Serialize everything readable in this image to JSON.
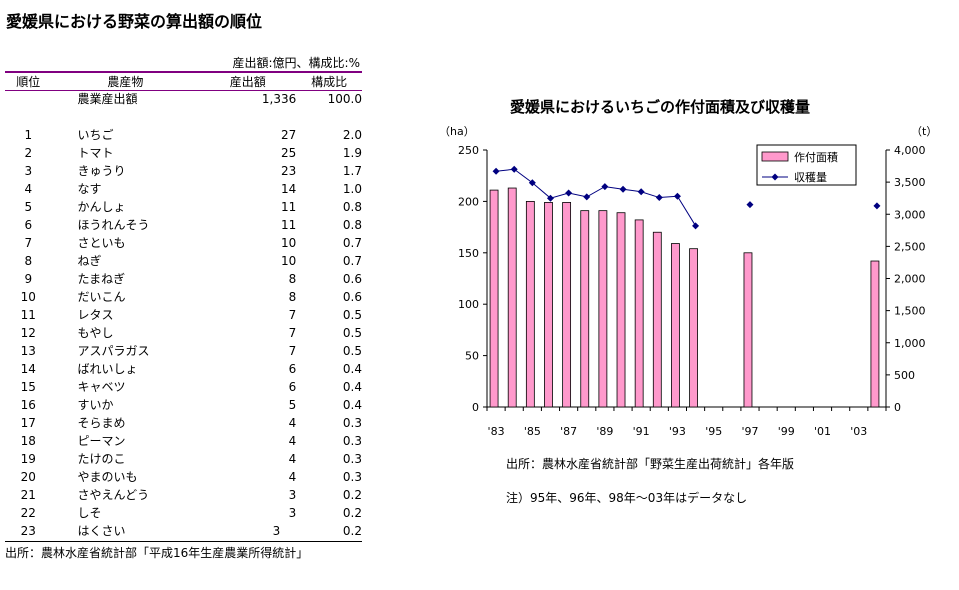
{
  "page_title": "愛媛県における野菜の算出額の順位",
  "table": {
    "unit": "産出額:億円、構成比:%",
    "headers": [
      "順位",
      "農産物",
      "産出額",
      "構成比"
    ],
    "total": {
      "label": "農業産出額",
      "value": "1,336",
      "share": "100.0"
    },
    "rows": [
      [
        "1",
        "いちご",
        "27",
        "2.0"
      ],
      [
        "2",
        "トマト",
        "25",
        "1.9"
      ],
      [
        "3",
        "きゅうり",
        "23",
        "1.7"
      ],
      [
        "4",
        "なす",
        "14",
        "1.0"
      ],
      [
        "5",
        "かんしょ",
        "11",
        "0.8"
      ],
      [
        "6",
        "ほうれんそう",
        "11",
        "0.8"
      ],
      [
        "7",
        "さといも",
        "10",
        "0.7"
      ],
      [
        "8",
        "ねぎ",
        "10",
        "0.7"
      ],
      [
        "9",
        "たまねぎ",
        "8",
        "0.6"
      ],
      [
        "10",
        "だいこん",
        "8",
        "0.6"
      ],
      [
        "11",
        "レタス",
        "7",
        "0.5"
      ],
      [
        "12",
        "もやし",
        "7",
        "0.5"
      ],
      [
        "13",
        "アスパラガス",
        "7",
        "0.5"
      ],
      [
        "14",
        "ばれいしょ",
        "6",
        "0.4"
      ],
      [
        "15",
        "キャベツ",
        "6",
        "0.4"
      ],
      [
        "16",
        "すいか",
        "5",
        "0.4"
      ],
      [
        "17",
        "そらまめ",
        "4",
        "0.3"
      ],
      [
        "18",
        "ピーマン",
        "4",
        "0.3"
      ],
      [
        "19",
        "たけのこ",
        "4",
        "0.3"
      ],
      [
        "20",
        "やまのいも",
        "4",
        "0.3"
      ],
      [
        "21",
        "さやえんどう",
        "3",
        "0.2"
      ],
      [
        "22",
        "しそ",
        "3",
        "0.2"
      ],
      [
        "23",
        "はくさい",
        "3",
        "0.2"
      ]
    ],
    "source": "出所：農林水産省統計部「平成16年生産農業所得統計」"
  },
  "chart_data": {
    "type": "bar+line",
    "title": "愛媛県におけるいちごの作付面積及び収穫量",
    "categories": [
      "'83",
      "'84",
      "'85",
      "'86",
      "'87",
      "'88",
      "'89",
      "'90",
      "'91",
      "'92",
      "'93",
      "'94",
      "'95",
      "'96",
      "'97",
      "'98",
      "'99",
      "'00",
      "'01",
      "'02",
      "'03",
      "'04"
    ],
    "xtick_labels": [
      "'83",
      "'85",
      "'87",
      "'89",
      "'91",
      "'93",
      "'95",
      "'97",
      "'99",
      "'01",
      "'03"
    ],
    "y_left": {
      "label": "（ha）",
      "range": [
        0,
        250
      ],
      "ticks": [
        "0",
        "50",
        "100",
        "150",
        "200",
        "250"
      ]
    },
    "y_right": {
      "label": "（t）",
      "range": [
        0,
        4000
      ],
      "ticks": [
        "0",
        "500",
        "1,000",
        "1,500",
        "2,000",
        "2,500",
        "3,000",
        "3,500",
        "4,000"
      ]
    },
    "series": [
      {
        "name": "作付面積",
        "type": "bar",
        "axis": "left",
        "color": "#ff99cc",
        "values": [
          211,
          213,
          200,
          199,
          199,
          191,
          191,
          189,
          182,
          170,
          159,
          154,
          null,
          null,
          150,
          null,
          null,
          null,
          null,
          null,
          null,
          142
        ]
      },
      {
        "name": "収穫量",
        "type": "line",
        "axis": "right",
        "color": "#000080",
        "values": [
          3670,
          3700,
          3490,
          3250,
          3330,
          3270,
          3430,
          3390,
          3350,
          3260,
          3280,
          2820,
          null,
          null,
          3150,
          null,
          null,
          null,
          null,
          null,
          null,
          3130
        ]
      }
    ],
    "legend": "top-right",
    "notes": [
      "出所：農林水産省統計部「野菜生産出荷統計」各年版",
      "注）95年、96年、98年～03年はデータなし"
    ]
  }
}
